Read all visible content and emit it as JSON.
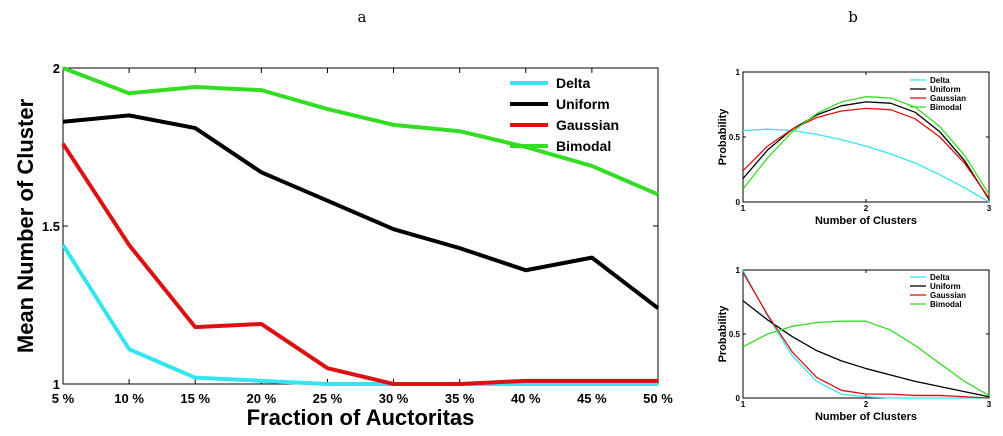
{
  "panels": {
    "a": "a",
    "b": "b"
  },
  "colors": {
    "Delta": "#33e6ee",
    "Uniform": "#000000",
    "Gaussian": "#dd1111",
    "Bimodal": "#33dd22"
  },
  "chart_data": [
    {
      "type": "line",
      "panel": "a",
      "title": "",
      "xlabel": "Fraction of Auctoritas",
      "ylabel": "Mean Number of Cluster",
      "categories": [
        "5 %",
        "10 %",
        "15 %",
        "20 %",
        "25 %",
        "30 %",
        "35 %",
        "40 %",
        "45 %",
        "50 %"
      ],
      "ylim": [
        1,
        2
      ],
      "yticks": [
        1,
        1.5,
        2
      ],
      "ytick_labels": [
        "1",
        "1.5",
        "2"
      ],
      "legend": "top-right",
      "series": [
        {
          "name": "Delta",
          "values": [
            1.44,
            1.11,
            1.02,
            1.01,
            1.0,
            1.0,
            1.0,
            1.0,
            1.0,
            1.0
          ]
        },
        {
          "name": "Uniform",
          "values": [
            1.83,
            1.85,
            1.81,
            1.67,
            1.58,
            1.49,
            1.43,
            1.36,
            1.4,
            1.24
          ]
        },
        {
          "name": "Gaussian",
          "values": [
            1.76,
            1.44,
            1.18,
            1.19,
            1.05,
            1.0,
            1.0,
            1.01,
            1.01,
            1.01
          ]
        },
        {
          "name": "Bimodal",
          "values": [
            2.0,
            1.92,
            1.94,
            1.93,
            1.87,
            1.82,
            1.8,
            1.75,
            1.69,
            1.6
          ]
        }
      ]
    },
    {
      "type": "line",
      "panel": "b-top",
      "xlabel": "Number of Clusters",
      "ylabel": "Probability",
      "xlim": [
        1,
        3
      ],
      "ylim": [
        0,
        1
      ],
      "xticks": [
        "1",
        "2",
        "3"
      ],
      "yticks": [
        "0",
        "0.5",
        "1"
      ],
      "legend": "top-right",
      "series": [
        {
          "name": "Delta",
          "x": [
            1,
            1.2,
            1.4,
            1.6,
            1.8,
            2.0,
            2.2,
            2.4,
            2.6,
            2.8,
            3.0
          ],
          "values": [
            0.55,
            0.56,
            0.55,
            0.52,
            0.48,
            0.43,
            0.37,
            0.3,
            0.21,
            0.11,
            0.0
          ]
        },
        {
          "name": "Uniform",
          "x": [
            1,
            1.2,
            1.4,
            1.6,
            1.8,
            2.0,
            2.2,
            2.4,
            2.6,
            2.8,
            3.0
          ],
          "values": [
            0.18,
            0.4,
            0.56,
            0.67,
            0.74,
            0.77,
            0.76,
            0.69,
            0.54,
            0.32,
            0.02
          ]
        },
        {
          "name": "Gaussian",
          "x": [
            1,
            1.2,
            1.4,
            1.6,
            1.8,
            2.0,
            2.2,
            2.4,
            2.6,
            2.8,
            3.0
          ],
          "values": [
            0.24,
            0.43,
            0.56,
            0.65,
            0.7,
            0.72,
            0.71,
            0.64,
            0.5,
            0.3,
            0.03
          ]
        },
        {
          "name": "Bimodal",
          "x": [
            1,
            1.2,
            1.4,
            1.6,
            1.8,
            2.0,
            2.2,
            2.4,
            2.6,
            2.8,
            3.0
          ],
          "values": [
            0.1,
            0.34,
            0.54,
            0.68,
            0.77,
            0.81,
            0.8,
            0.73,
            0.58,
            0.36,
            0.06
          ]
        }
      ]
    },
    {
      "type": "line",
      "panel": "b-bottom",
      "xlabel": "Number of Clusters",
      "ylabel": "Probability",
      "xlim": [
        1,
        3
      ],
      "ylim": [
        0,
        1
      ],
      "xticks": [
        "1",
        "2",
        "3"
      ],
      "yticks": [
        "0",
        "0.5",
        "1"
      ],
      "legend": "top-right",
      "series": [
        {
          "name": "Delta",
          "x": [
            1,
            1.2,
            1.4,
            1.6,
            1.8,
            2.0,
            2.2,
            2.4,
            2.6,
            2.8,
            3.0
          ],
          "values": [
            1.0,
            0.64,
            0.33,
            0.13,
            0.03,
            0.01,
            0.0,
            0.0,
            0.0,
            0.0,
            0.0
          ]
        },
        {
          "name": "Uniform",
          "x": [
            1,
            1.2,
            1.4,
            1.6,
            1.8,
            2.0,
            2.2,
            2.4,
            2.6,
            2.8,
            3.0
          ],
          "values": [
            0.76,
            0.61,
            0.48,
            0.37,
            0.29,
            0.23,
            0.18,
            0.13,
            0.09,
            0.05,
            0.01
          ]
        },
        {
          "name": "Gaussian",
          "x": [
            1,
            1.2,
            1.4,
            1.6,
            1.8,
            2.0,
            2.2,
            2.4,
            2.6,
            2.8,
            3.0
          ],
          "values": [
            0.98,
            0.65,
            0.36,
            0.16,
            0.06,
            0.03,
            0.03,
            0.02,
            0.02,
            0.01,
            0.0
          ]
        },
        {
          "name": "Bimodal",
          "x": [
            1,
            1.2,
            1.4,
            1.6,
            1.8,
            2.0,
            2.2,
            2.4,
            2.6,
            2.8,
            3.0
          ],
          "values": [
            0.4,
            0.5,
            0.56,
            0.59,
            0.6,
            0.6,
            0.53,
            0.41,
            0.27,
            0.13,
            0.02
          ]
        }
      ]
    }
  ]
}
